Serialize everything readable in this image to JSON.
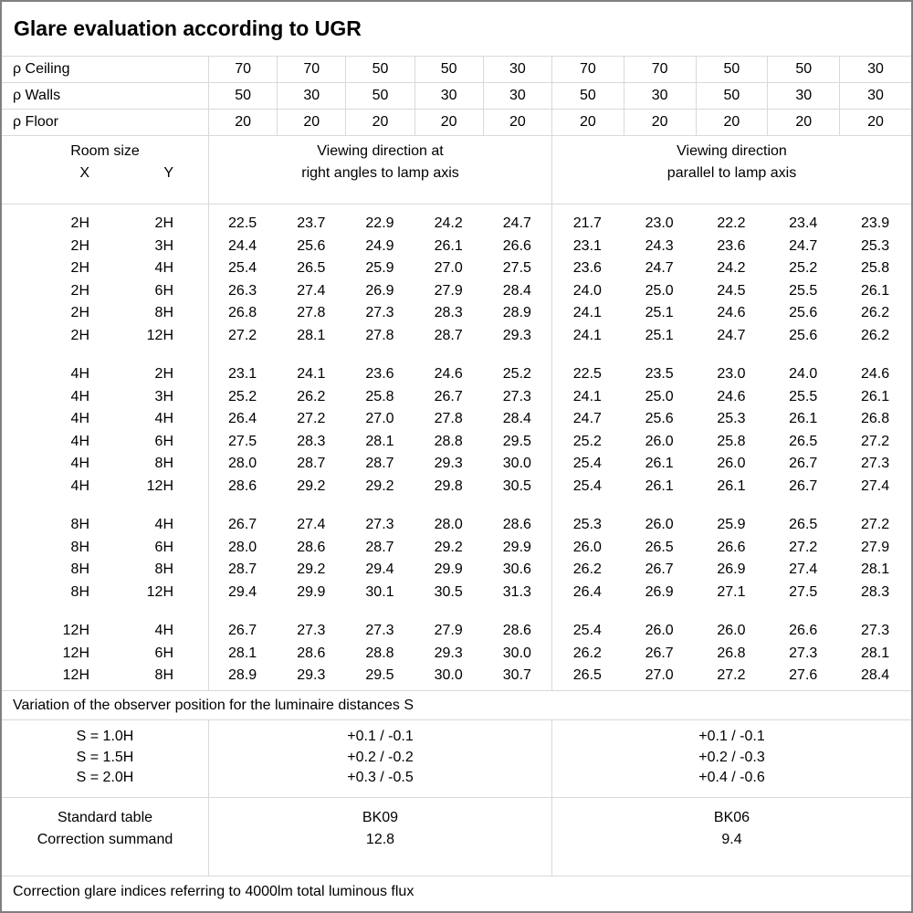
{
  "title": "Glare evaluation according to UGR",
  "reflectance": {
    "rows": [
      {
        "label": "ρ Ceiling",
        "values": [
          "70",
          "70",
          "50",
          "50",
          "30",
          "70",
          "70",
          "50",
          "50",
          "30"
        ]
      },
      {
        "label": "ρ Walls",
        "values": [
          "50",
          "30",
          "50",
          "30",
          "30",
          "50",
          "30",
          "50",
          "30",
          "30"
        ]
      },
      {
        "label": "ρ Floor",
        "values": [
          "20",
          "20",
          "20",
          "20",
          "20",
          "20",
          "20",
          "20",
          "20",
          "20"
        ]
      }
    ]
  },
  "header": {
    "room_size_label": "Room size",
    "x_label": "X",
    "y_label": "Y",
    "left_group_label": "Viewing direction at\nright angles to lamp axis",
    "right_group_label": "Viewing direction\nparallel to lamp axis"
  },
  "ugr_table": {
    "blocks": [
      {
        "rows": [
          {
            "x": "2H",
            "y": "2H",
            "left": [
              "22.5",
              "23.7",
              "22.9",
              "24.2",
              "24.7"
            ],
            "right": [
              "21.7",
              "23.0",
              "22.2",
              "23.4",
              "23.9"
            ]
          },
          {
            "x": "2H",
            "y": "3H",
            "left": [
              "24.4",
              "25.6",
              "24.9",
              "26.1",
              "26.6"
            ],
            "right": [
              "23.1",
              "24.3",
              "23.6",
              "24.7",
              "25.3"
            ]
          },
          {
            "x": "2H",
            "y": "4H",
            "left": [
              "25.4",
              "26.5",
              "25.9",
              "27.0",
              "27.5"
            ],
            "right": [
              "23.6",
              "24.7",
              "24.2",
              "25.2",
              "25.8"
            ]
          },
          {
            "x": "2H",
            "y": "6H",
            "left": [
              "26.3",
              "27.4",
              "26.9",
              "27.9",
              "28.4"
            ],
            "right": [
              "24.0",
              "25.0",
              "24.5",
              "25.5",
              "26.1"
            ]
          },
          {
            "x": "2H",
            "y": "8H",
            "left": [
              "26.8",
              "27.8",
              "27.3",
              "28.3",
              "28.9"
            ],
            "right": [
              "24.1",
              "25.1",
              "24.6",
              "25.6",
              "26.2"
            ]
          },
          {
            "x": "2H",
            "y": "12H",
            "left": [
              "27.2",
              "28.1",
              "27.8",
              "28.7",
              "29.3"
            ],
            "right": [
              "24.1",
              "25.1",
              "24.7",
              "25.6",
              "26.2"
            ]
          }
        ]
      },
      {
        "rows": [
          {
            "x": "4H",
            "y": "2H",
            "left": [
              "23.1",
              "24.1",
              "23.6",
              "24.6",
              "25.2"
            ],
            "right": [
              "22.5",
              "23.5",
              "23.0",
              "24.0",
              "24.6"
            ]
          },
          {
            "x": "4H",
            "y": "3H",
            "left": [
              "25.2",
              "26.2",
              "25.8",
              "26.7",
              "27.3"
            ],
            "right": [
              "24.1",
              "25.0",
              "24.6",
              "25.5",
              "26.1"
            ]
          },
          {
            "x": "4H",
            "y": "4H",
            "left": [
              "26.4",
              "27.2",
              "27.0",
              "27.8",
              "28.4"
            ],
            "right": [
              "24.7",
              "25.6",
              "25.3",
              "26.1",
              "26.8"
            ]
          },
          {
            "x": "4H",
            "y": "6H",
            "left": [
              "27.5",
              "28.3",
              "28.1",
              "28.8",
              "29.5"
            ],
            "right": [
              "25.2",
              "26.0",
              "25.8",
              "26.5",
              "27.2"
            ]
          },
          {
            "x": "4H",
            "y": "8H",
            "left": [
              "28.0",
              "28.7",
              "28.7",
              "29.3",
              "30.0"
            ],
            "right": [
              "25.4",
              "26.1",
              "26.0",
              "26.7",
              "27.3"
            ]
          },
          {
            "x": "4H",
            "y": "12H",
            "left": [
              "28.6",
              "29.2",
              "29.2",
              "29.8",
              "30.5"
            ],
            "right": [
              "25.4",
              "26.1",
              "26.1",
              "26.7",
              "27.4"
            ]
          }
        ]
      },
      {
        "rows": [
          {
            "x": "8H",
            "y": "4H",
            "left": [
              "26.7",
              "27.4",
              "27.3",
              "28.0",
              "28.6"
            ],
            "right": [
              "25.3",
              "26.0",
              "25.9",
              "26.5",
              "27.2"
            ]
          },
          {
            "x": "8H",
            "y": "6H",
            "left": [
              "28.0",
              "28.6",
              "28.7",
              "29.2",
              "29.9"
            ],
            "right": [
              "26.0",
              "26.5",
              "26.6",
              "27.2",
              "27.9"
            ]
          },
          {
            "x": "8H",
            "y": "8H",
            "left": [
              "28.7",
              "29.2",
              "29.4",
              "29.9",
              "30.6"
            ],
            "right": [
              "26.2",
              "26.7",
              "26.9",
              "27.4",
              "28.1"
            ]
          },
          {
            "x": "8H",
            "y": "12H",
            "left": [
              "29.4",
              "29.9",
              "30.1",
              "30.5",
              "31.3"
            ],
            "right": [
              "26.4",
              "26.9",
              "27.1",
              "27.5",
              "28.3"
            ]
          }
        ]
      },
      {
        "rows": [
          {
            "x": "12H",
            "y": "4H",
            "left": [
              "26.7",
              "27.3",
              "27.3",
              "27.9",
              "28.6"
            ],
            "right": [
              "25.4",
              "26.0",
              "26.0",
              "26.6",
              "27.3"
            ]
          },
          {
            "x": "12H",
            "y": "6H",
            "left": [
              "28.1",
              "28.6",
              "28.8",
              "29.3",
              "30.0"
            ],
            "right": [
              "26.2",
              "26.7",
              "26.8",
              "27.3",
              "28.1"
            ]
          },
          {
            "x": "12H",
            "y": "8H",
            "left": [
              "28.9",
              "29.3",
              "29.5",
              "30.0",
              "30.7"
            ],
            "right": [
              "26.5",
              "27.0",
              "27.2",
              "27.6",
              "28.4"
            ]
          }
        ]
      }
    ]
  },
  "variation_note": "Variation of the observer position for the luminaire distances S",
  "spacing_section": {
    "rows": [
      {
        "label": "S = 1.0H",
        "left": "+0.1 / -0.1",
        "right": "+0.1 / -0.1"
      },
      {
        "label": "S = 1.5H",
        "left": "+0.2 / -0.2",
        "right": "+0.2 / -0.3"
      },
      {
        "label": "S = 2.0H",
        "left": "+0.3 / -0.5",
        "right": "+0.4 / -0.6"
      }
    ]
  },
  "summary_section": {
    "rows": [
      {
        "label": "Standard table",
        "left": "BK09",
        "right": "BK06"
      },
      {
        "label": "Correction summand",
        "left": "12.8",
        "right": "9.4"
      }
    ]
  },
  "footer_note": "Correction glare indices referring to 4000lm total luminous flux",
  "colors": {
    "background": "#ffffff",
    "text": "#000000",
    "grid_line": "#d9d9d9",
    "outer_border": "#808080"
  }
}
